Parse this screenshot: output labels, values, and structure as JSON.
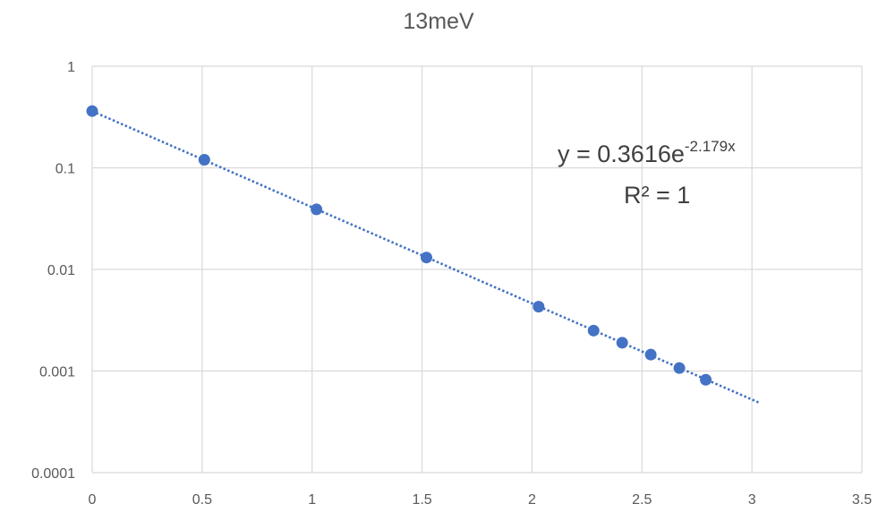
{
  "chart_data": {
    "type": "scatter",
    "title": "13meV",
    "xlabel": "",
    "ylabel": "",
    "xlim": [
      0,
      3.5
    ],
    "ylim": [
      0.0001,
      1
    ],
    "yscale": "log",
    "grid": true,
    "legend": "none",
    "x_ticks": [
      "0",
      "0.5",
      "1",
      "1.5",
      "2",
      "2.5",
      "3",
      "3.5"
    ],
    "y_ticks": [
      "1",
      "0.1",
      "0.01",
      "0.001",
      "0.0001"
    ],
    "series": [
      {
        "color": "#4472C4",
        "x": [
          0,
          0.51,
          1.02,
          1.52,
          2.03,
          2.28,
          2.41,
          2.54,
          2.67,
          2.79
        ],
        "y": [
          0.362,
          0.12,
          0.039,
          0.0131,
          0.0043,
          0.0025,
          0.0019,
          0.00145,
          0.00107,
          0.00082
        ]
      }
    ],
    "trendline": {
      "type": "exponential",
      "color": "#4472C4",
      "style": "dotted",
      "coefficient": 0.3616,
      "exponent": -2.179,
      "x_range": [
        0,
        3.03
      ],
      "equation_prefix": "y = 0.3616e",
      "equation_exponent": "-2.179x",
      "r_squared_label": "R² = 1"
    },
    "colors": {
      "grid": "#d9d9d9",
      "text": "#595959",
      "equation_text": "#404040"
    }
  }
}
